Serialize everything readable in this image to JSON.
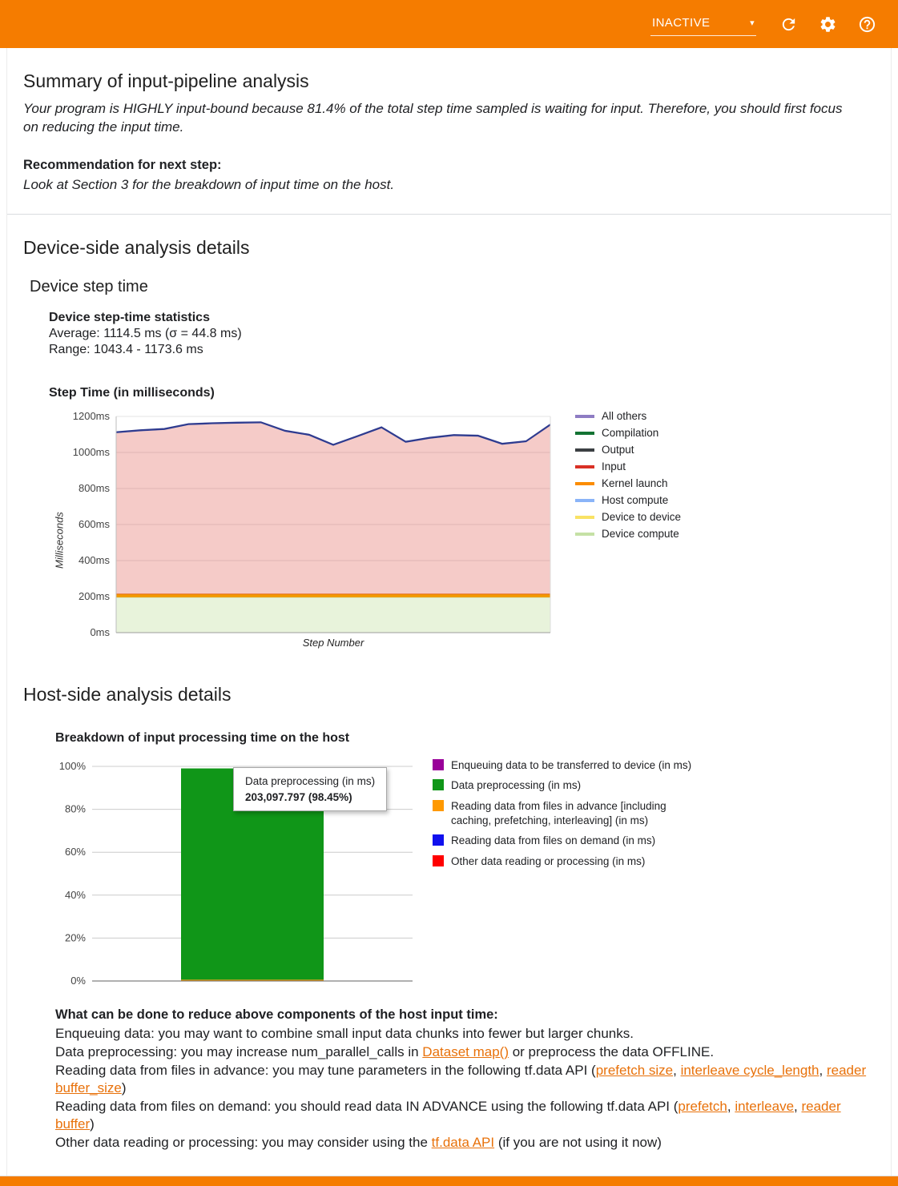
{
  "colors": {
    "header_bg": "#F57C00",
    "link": "#E8710A",
    "divider": "#DADCE0"
  },
  "header": {
    "status": "INACTIVE",
    "icons": [
      "chevron-down-icon",
      "refresh-icon",
      "settings-icon",
      "help-icon"
    ]
  },
  "summary": {
    "title": "Summary of input-pipeline analysis",
    "body": "Your program is HIGHLY input-bound because 81.4% of the total step time sampled is waiting for input. Therefore, you should first focus on reducing the input time.",
    "recommendation_label": "Recommendation for next step:",
    "recommendation": "Look at Section 3 for the breakdown of input time on the host."
  },
  "device": {
    "section_title": "Device-side analysis details",
    "subsection_title": "Device step time",
    "stats_title": "Device step-time statistics",
    "stats_average": "Average: 1114.5 ms (σ = 44.8 ms)",
    "stats_range": "Range: 1043.4 - 1173.6 ms",
    "chart_title": "Step Time (in milliseconds)"
  },
  "host": {
    "section_title": "Host-side analysis details",
    "chart_title": "Breakdown of input processing time on the host",
    "tooltip": {
      "title": "Data preprocessing (in ms)",
      "value": "203,097.797 (98.45%)"
    }
  },
  "tips": {
    "title": "What can be done to reduce above components of the host input time:",
    "lines": [
      [
        {
          "t": "Enqueuing data: you may want to combine small input data chunks into fewer but larger chunks."
        }
      ],
      [
        {
          "t": "Data preprocessing: you may increase num_parallel_calls in "
        },
        {
          "l": "Dataset map()"
        },
        {
          "t": " or preprocess the data OFFLINE."
        }
      ],
      [
        {
          "t": "Reading data from files in advance: you may tune parameters in the following tf.data API ("
        },
        {
          "l": "prefetch size"
        },
        {
          "t": ", "
        },
        {
          "l": "interleave cycle_length"
        },
        {
          "t": ", "
        },
        {
          "l": "reader buffer_size"
        },
        {
          "t": ")"
        }
      ],
      [
        {
          "t": "Reading data from files on demand: you should read data IN ADVANCE using the following tf.data API ("
        },
        {
          "l": "prefetch"
        },
        {
          "t": ", "
        },
        {
          "l": "interleave"
        },
        {
          "t": ", "
        },
        {
          "l": "reader buffer"
        },
        {
          "t": ")"
        }
      ],
      [
        {
          "t": "Other data reading or processing: you may consider using the "
        },
        {
          "l": "tf.data API"
        },
        {
          "t": " (if you are not using it now)"
        }
      ]
    ]
  },
  "chart_data": [
    {
      "type": "area",
      "title": "Step Time (in milliseconds)",
      "xlabel": "Step Number",
      "ylabel": "Milliseconds",
      "ylim": [
        0,
        1200
      ],
      "yticks": [
        "0ms",
        "200ms",
        "400ms",
        "600ms",
        "800ms",
        "1000ms",
        "1200ms"
      ],
      "grid": true,
      "legend_position": "right",
      "legend": [
        {
          "label": "All others",
          "color": "#8E7CC3"
        },
        {
          "label": "Compilation",
          "color": "#137333"
        },
        {
          "label": "Output",
          "color": "#3C4043"
        },
        {
          "label": "Input",
          "color": "#D93025"
        },
        {
          "label": "Kernel launch",
          "color": "#FB8C00"
        },
        {
          "label": "Host compute",
          "color": "#8AB4F8"
        },
        {
          "label": "Device to device",
          "color": "#F9E264"
        },
        {
          "label": "Device compute",
          "color": "#C5E1A5"
        }
      ],
      "series": [
        {
          "name": "Device compute",
          "fill": "#E8F3DB",
          "stroke": "#C0D89A",
          "stroke_width": 1,
          "values": [
            196,
            196,
            196,
            196,
            196,
            196,
            196,
            196,
            196,
            196,
            196,
            196,
            196,
            196,
            196,
            196,
            196,
            196,
            196
          ]
        },
        {
          "name": "Kernel launch",
          "fill": "#F29900",
          "stroke": "#E8710A",
          "stroke_width": 1,
          "values": [
            18,
            18,
            18,
            18,
            18,
            18,
            18,
            18,
            18,
            18,
            18,
            18,
            18,
            18,
            18,
            18,
            18,
            18,
            18
          ]
        },
        {
          "name": "Input",
          "fill": "rgba(217,48,37,0.25)",
          "stroke": null,
          "stroke_width": 0,
          "values": [
            893,
            904,
            911,
            938,
            943,
            946,
            948,
            901,
            879,
            823,
            871,
            920,
            840,
            862,
            877,
            874,
            829,
            843,
            935
          ]
        },
        {
          "name": "All others",
          "fill": "#2F3B8F",
          "stroke": "#2F3B8F",
          "stroke_width": 2,
          "values": [
            6,
            6,
            6,
            6,
            6,
            6,
            6,
            6,
            6,
            6,
            6,
            6,
            6,
            6,
            6,
            6,
            6,
            6,
            6
          ]
        }
      ],
      "total_step_time_ms": [
        1113,
        1124,
        1131,
        1158,
        1163,
        1166,
        1168,
        1121,
        1099,
        1043,
        1091,
        1140,
        1060,
        1082,
        1097,
        1094,
        1049,
        1063,
        1155
      ]
    },
    {
      "type": "bar",
      "title": "Breakdown of input processing time on the host",
      "ylim": [
        0,
        100
      ],
      "yticks": [
        "0%",
        "20%",
        "40%",
        "60%",
        "80%",
        "100%"
      ],
      "grid": true,
      "legend_position": "right",
      "legend": [
        {
          "label": "Enqueuing data to be transferred to device (in ms)",
          "color": "#990099"
        },
        {
          "label": "Data preprocessing (in ms)",
          "color": "#109618"
        },
        {
          "label": "Reading data from files in advance [including caching, prefetching, interleaving] (in ms)",
          "color": "#FF9900"
        },
        {
          "label": "Reading data from files on demand (in ms)",
          "color": "#1010EE"
        },
        {
          "label": "Other data reading or processing (in ms)",
          "color": "#FF0000"
        }
      ],
      "segments": [
        {
          "label": "Reading data from files in advance [including caching, prefetching, interleaving] (in ms)",
          "color": "#FF9900",
          "value": 0.6
        },
        {
          "label": "Data preprocessing (in ms)",
          "color": "#109618",
          "value": 98.45
        }
      ],
      "tooltip": {
        "title": "Data preprocessing (in ms)",
        "value": "203,097.797 (98.45%)"
      }
    }
  ]
}
